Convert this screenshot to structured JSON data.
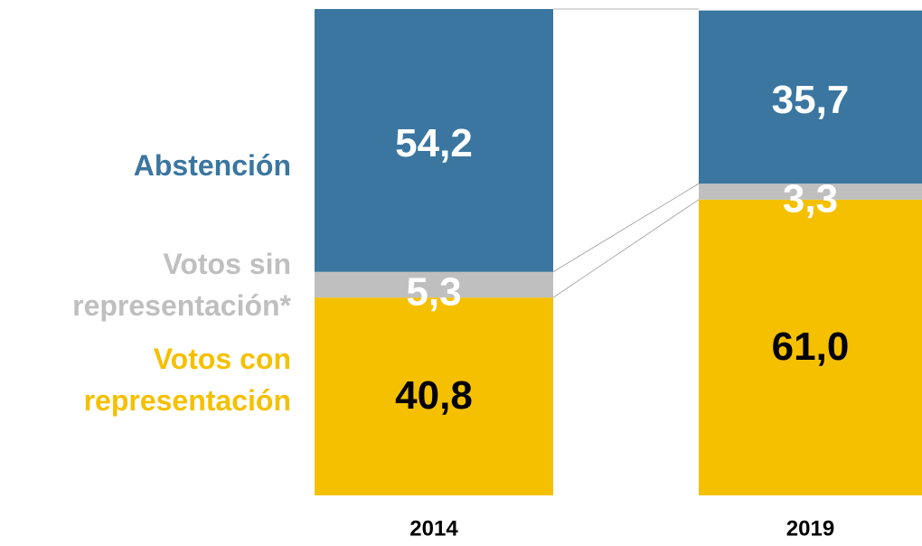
{
  "chart_data": {
    "type": "stacked_bar",
    "categories": [
      "2014",
      "2019"
    ],
    "series": [
      {
        "name": "Votos con representación",
        "color": "#F5C000",
        "values": [
          40.8,
          61.0
        ],
        "value_labels": [
          "40,8",
          "61,0"
        ]
      },
      {
        "name": "Votos sin representación*",
        "color": "#BFBFBF",
        "values": [
          5.3,
          3.3
        ],
        "value_labels": [
          "5,3",
          "3,3"
        ]
      },
      {
        "name": "Abstención",
        "color": "#3A76A0",
        "values": [
          54.2,
          35.7
        ],
        "value_labels": [
          "54,2",
          "35,7"
        ]
      }
    ]
  }
}
